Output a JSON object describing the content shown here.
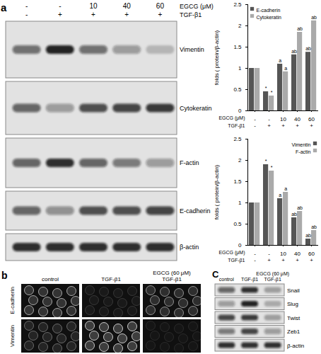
{
  "figure": {
    "panel_a": {
      "label": "a",
      "header_rows": [
        {
          "label": "EGCG (μM)",
          "values": [
            "-",
            "-",
            "10",
            "40",
            "60"
          ]
        },
        {
          "label": "TGF-β1",
          "values": [
            "-",
            "+",
            "+",
            "+",
            "+"
          ]
        }
      ],
      "blots": [
        {
          "name": "Vimentin",
          "bands": [
            0.55,
            0.9,
            0.55,
            0.35,
            0.2
          ]
        },
        {
          "name": "Cytokeratin",
          "bands": [
            0.6,
            0.35,
            0.7,
            0.75,
            0.8
          ]
        },
        {
          "name": "F-actin",
          "bands": [
            0.6,
            0.85,
            0.6,
            0.5,
            0.35
          ]
        },
        {
          "name": "E-cadherin",
          "bands": [
            0.6,
            0.4,
            0.7,
            0.7,
            0.75
          ]
        },
        {
          "name": "β-actin",
          "bands": [
            0.85,
            0.85,
            0.85,
            0.85,
            0.85
          ]
        }
      ]
    },
    "panel_b": {
      "label": "b",
      "columns": [
        [
          "control"
        ],
        [
          "TGF-β1"
        ],
        [
          "EGCG (60 μM)",
          "TGF-β1"
        ]
      ],
      "rows": [
        {
          "name": "E-cadherin",
          "signal": [
            0.6,
            0.15,
            0.5
          ]
        },
        {
          "name": "Vimentin",
          "signal": [
            0.35,
            0.75,
            0.1
          ]
        }
      ]
    },
    "panel_c": {
      "label": "C",
      "columns": [
        [
          "control"
        ],
        [
          "TGF-β1"
        ],
        [
          "EGCG (60 μM)",
          "TGF-β1"
        ]
      ],
      "blots": [
        {
          "name": "Snail",
          "bands": [
            0.6,
            0.85,
            0.3
          ]
        },
        {
          "name": "Slug",
          "bands": [
            0.35,
            0.9,
            0.25
          ]
        },
        {
          "name": "Twist",
          "bands": [
            0.75,
            0.8,
            0.3
          ]
        },
        {
          "name": "Zeb1",
          "bands": [
            0.5,
            0.75,
            0.35
          ]
        },
        {
          "name": "β-actin",
          "bands": [
            0.85,
            0.85,
            0.85
          ]
        }
      ]
    }
  },
  "chart_data": [
    {
      "type": "bar",
      "ylabel": "folds ( protein/β-actin)",
      "categories": [
        "-",
        "-",
        "10",
        "40",
        "60"
      ],
      "category_title": "EGCG (μM)",
      "second_row": {
        "label": "TGF-β1",
        "values": [
          "-",
          "+",
          "+",
          "+",
          "+"
        ]
      },
      "ylim": [
        0,
        2.5
      ],
      "yticks": [
        0,
        0.5,
        1,
        1.5,
        2,
        2.5
      ],
      "legend": "top-left",
      "series": [
        {
          "name": "E-cadherin",
          "color": "#555555",
          "values": [
            1,
            0.45,
            1.1,
            1.32,
            1.38
          ],
          "annotations": [
            null,
            "*",
            "a",
            "ab",
            "ab"
          ]
        },
        {
          "name": "Cytokeratin",
          "color": "#aaaaaa",
          "values": [
            1,
            0.35,
            0.92,
            1.85,
            2.12
          ],
          "annotations": [
            null,
            "*",
            "a",
            "ab",
            "ab"
          ]
        }
      ]
    },
    {
      "type": "bar",
      "ylabel": "folds ( protein/β-actin)",
      "categories": [
        "-",
        "-",
        "10",
        "40",
        "60"
      ],
      "category_title": "EGCG (μM)",
      "second_row": {
        "label": "TGF-β1",
        "values": [
          "-",
          "+",
          "+",
          "+",
          "+"
        ]
      },
      "ylim": [
        0,
        2.5
      ],
      "yticks": [
        0,
        0.5,
        1,
        1.5,
        2,
        2.5
      ],
      "legend": "top-right",
      "series": [
        {
          "name": "Vimentin",
          "color": "#555555",
          "values": [
            1,
            1.9,
            1.1,
            0.65,
            0.15
          ],
          "annotations": [
            null,
            "*",
            "a",
            "ab",
            "ab"
          ]
        },
        {
          "name": "F-actin",
          "color": "#aaaaaa",
          "values": [
            1,
            1.75,
            1.25,
            0.8,
            0.35
          ],
          "annotations": [
            null,
            "*",
            "a",
            "ab",
            "ab"
          ]
        }
      ]
    }
  ]
}
